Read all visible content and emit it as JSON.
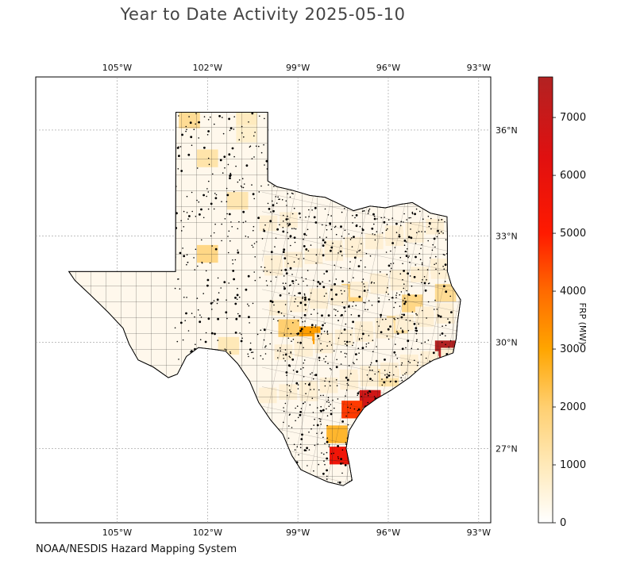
{
  "title": "Year to Date Activity 2025-05-10",
  "credit": "NOAA/NESDIS Hazard Mapping System",
  "colorbar": {
    "label": "FRP (MW)",
    "min": 0,
    "max": 7700,
    "ticks": [
      "0",
      "1000",
      "2000",
      "3000",
      "4000",
      "5000",
      "6000",
      "7000"
    ],
    "tick_values": [
      0,
      1000,
      2000,
      3000,
      4000,
      5000,
      6000,
      7000
    ],
    "colors": [
      "#ffffff",
      "#ffe9b8",
      "#ffcf70",
      "#ffa500",
      "#ff6a00",
      "#ff1a00",
      "#e01010",
      "#b22222"
    ]
  },
  "map": {
    "lon_ticks": [
      "105°W",
      "102°W",
      "99°W",
      "96°W",
      "93°W"
    ],
    "lon_values": [
      -105,
      -102,
      -99,
      -96,
      -93
    ],
    "lat_ticks": [
      "36°N",
      "33°N",
      "30°N",
      "27°N"
    ],
    "lat_values": [
      36,
      33,
      30,
      27
    ],
    "extent": {
      "lon_min": -107.7,
      "lon_max": -92.6,
      "lat_min": 24.9,
      "lat_max": 37.5
    },
    "grid": true,
    "highlight_cells": [
      {
        "lon": -102.6,
        "lat": 36.3,
        "frp": 1500
      },
      {
        "lon": -100.7,
        "lat": 36.3,
        "frp": 900
      },
      {
        "lon": -100.7,
        "lat": 35.9,
        "frp": 700
      },
      {
        "lon": -102.0,
        "lat": 35.2,
        "frp": 1200
      },
      {
        "lon": -101.0,
        "lat": 34.0,
        "frp": 1100
      },
      {
        "lon": -102.0,
        "lat": 32.5,
        "frp": 1700
      },
      {
        "lon": -97.2,
        "lat": 31.4,
        "frp": 1900
      },
      {
        "lon": -95.2,
        "lat": 31.1,
        "frp": 1700
      },
      {
        "lon": -94.1,
        "lat": 31.4,
        "frp": 1500
      },
      {
        "lon": -95.7,
        "lat": 30.5,
        "frp": 1300
      },
      {
        "lon": -99.3,
        "lat": 30.4,
        "frp": 2000
      },
      {
        "lon": -98.6,
        "lat": 30.2,
        "frp": 3100
      },
      {
        "lon": -94.1,
        "lat": 29.8,
        "frp": 7700
      },
      {
        "lon": -96.6,
        "lat": 28.4,
        "frp": 6800
      },
      {
        "lon": -97.2,
        "lat": 28.1,
        "frp": 4600
      },
      {
        "lon": -97.7,
        "lat": 27.4,
        "frp": 2600
      },
      {
        "lon": -97.6,
        "lat": 26.8,
        "frp": 5600
      },
      {
        "lon": -96.0,
        "lat": 29.0,
        "frp": 1200
      },
      {
        "lon": -101.3,
        "lat": 29.9,
        "frp": 1000
      }
    ]
  }
}
